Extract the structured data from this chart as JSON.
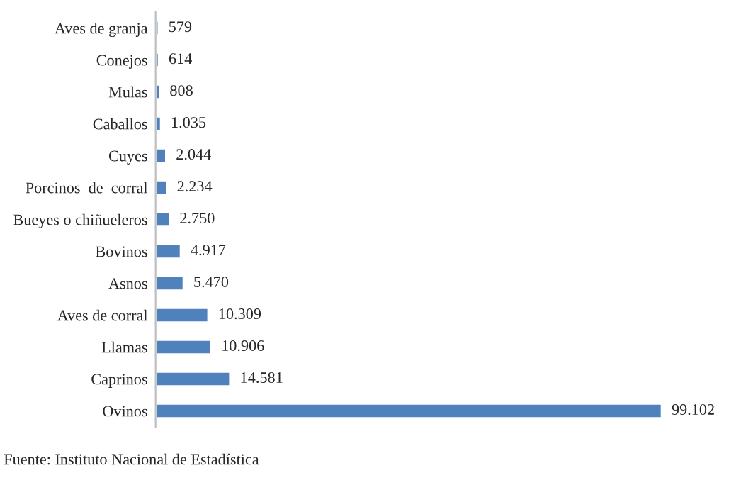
{
  "chart_data": {
    "type": "bar",
    "orientation": "horizontal",
    "categories": [
      "Aves de granja",
      "Conejos",
      "Mulas",
      "Caballos",
      "Cuyes",
      "Porcinos  de  corral",
      "Bueyes o chiñueleros",
      "Bovinos",
      "Asnos",
      "Aves de corral",
      "Llamas",
      "Caprinos",
      "Ovinos"
    ],
    "values": [
      579,
      614,
      808,
      1035,
      2044,
      2234,
      2750,
      4917,
      5470,
      10309,
      10906,
      14581,
      99102
    ],
    "value_labels": [
      "579",
      "614",
      "808",
      "1.035",
      "2.044",
      "2.234",
      "2.750",
      "4.917",
      "5.470",
      "10.309",
      "10.906",
      "14.581",
      "99.102"
    ],
    "color": "#4f81bd",
    "grid": false,
    "legend": false,
    "tick_labels": "y",
    "annotations": [
      "Fuente: Instituto Nacional de Estadística"
    ]
  }
}
